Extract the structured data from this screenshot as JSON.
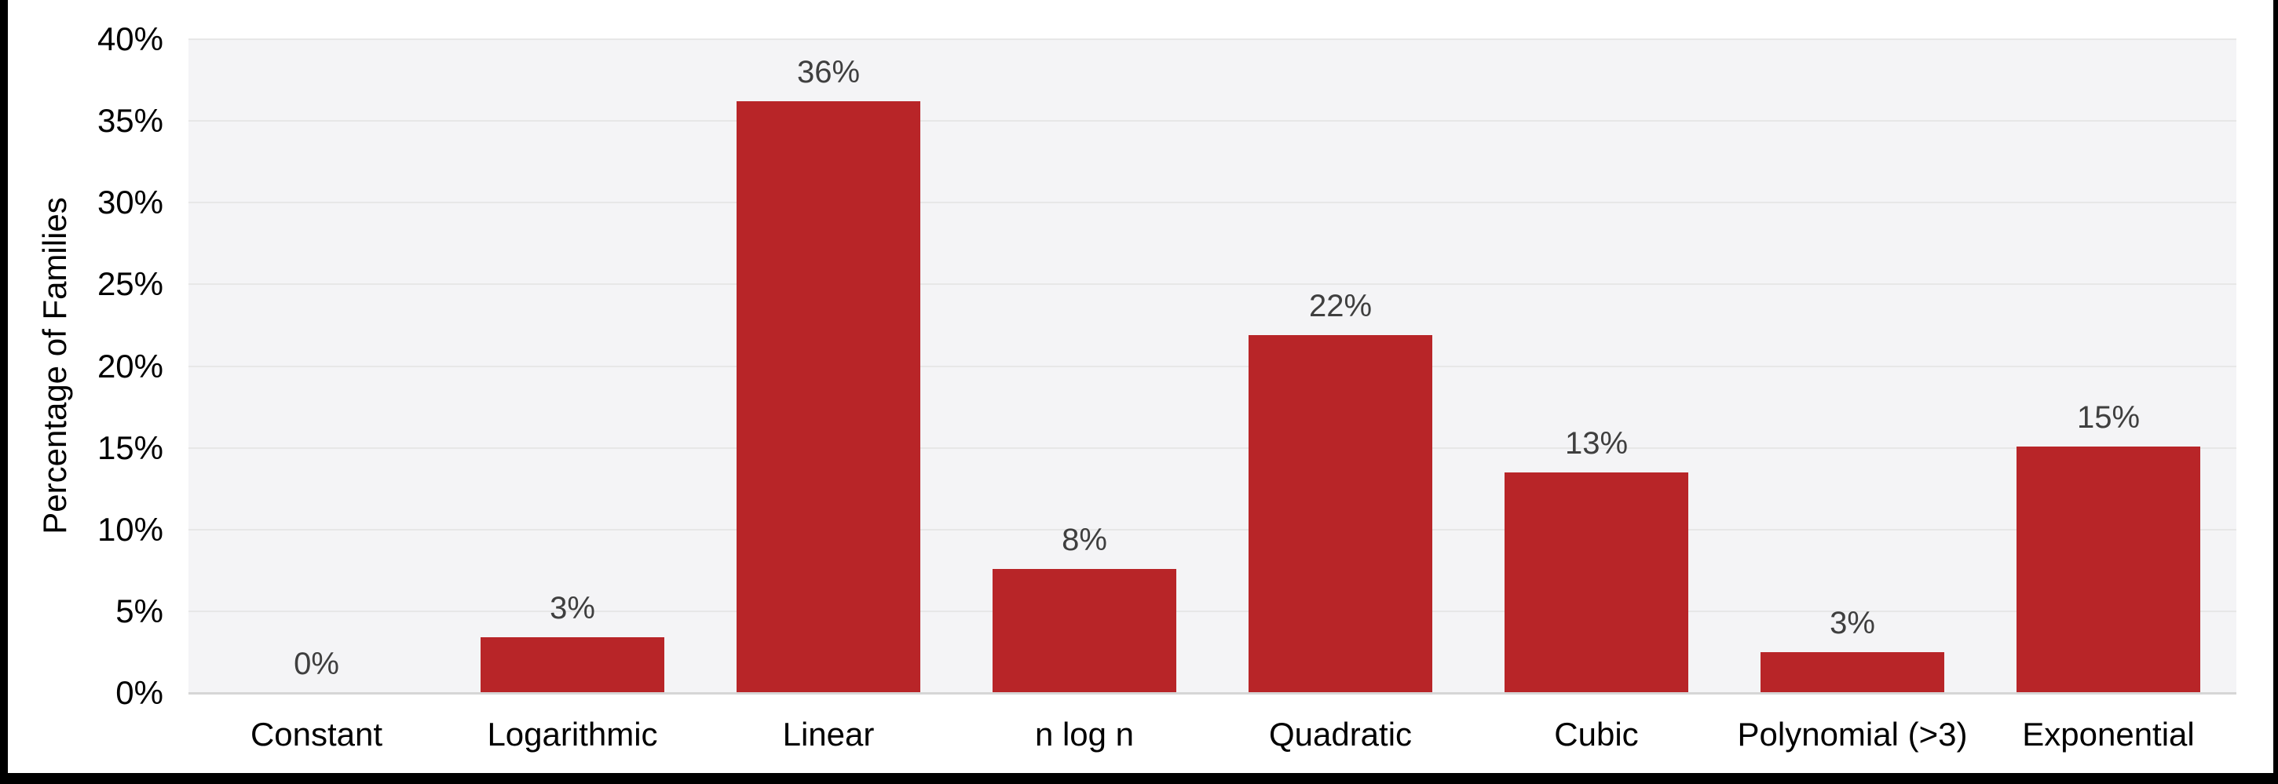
{
  "chart_data": {
    "type": "bar",
    "title": "",
    "ylabel": "Percentage of Families",
    "xlabel": "",
    "categories": [
      "Constant",
      "Logarithmic",
      "Linear",
      "n log n",
      "Quadratic",
      "Cubic",
      "Polynomial (>3)",
      "Exponential"
    ],
    "values": [
      0,
      3.4,
      36.2,
      7.6,
      21.9,
      13.5,
      2.5,
      15.1
    ],
    "value_labels": [
      "0%",
      "3%",
      "36%",
      "8%",
      "22%",
      "13%",
      "3%",
      "15%"
    ],
    "ylim": [
      0,
      40
    ],
    "ytick_step": 5,
    "ytick_labels": [
      "0%",
      "5%",
      "10%",
      "15%",
      "20%",
      "25%",
      "30%",
      "35%",
      "40%"
    ],
    "grid": true,
    "legend": false,
    "series_name": "Percentage of Families",
    "colors": {
      "bar": "#b82528",
      "value_label": "#3f3f3f",
      "axis_text": "#000000",
      "plot_background": "#f4f4f6",
      "gridline": "#e7e7e7",
      "axis_line": "#d6d6d6",
      "frame_border": "#000000",
      "page_background": "#ffffff"
    }
  }
}
